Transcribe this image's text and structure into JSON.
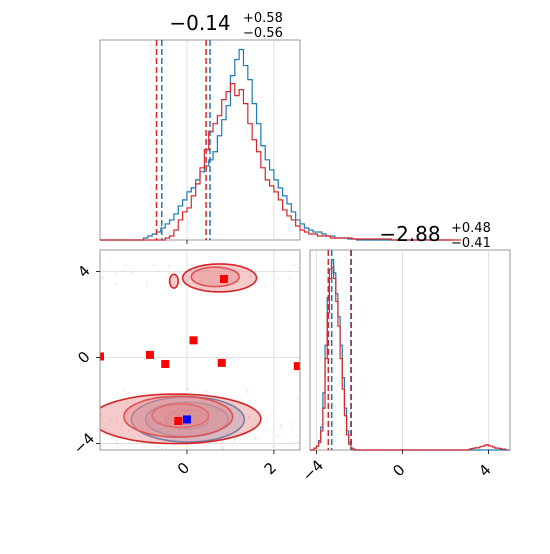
{
  "chart_data": [
    {
      "type": "histogram",
      "panel": "x-marginal",
      "title": {
        "median": "−0.14",
        "upper": "+0.58",
        "lower": "−0.56"
      },
      "xlim": [
        -2.0,
        2.6
      ],
      "bin_start": -2.0,
      "bin_width": 0.1,
      "series": [
        {
          "name": "",
          "color": "#1f77b4",
          "counts": [
            0,
            0,
            0,
            0,
            0,
            0,
            0,
            0,
            0,
            0,
            0.01,
            0.02,
            0.03,
            0.04,
            0.06,
            0.08,
            0.1,
            0.13,
            0.17,
            0.2,
            0.24,
            0.26,
            0.3,
            0.34,
            0.37,
            0.4,
            0.44,
            0.52,
            0.6,
            0.67,
            0.82,
            0.9,
            0.95,
            0.87,
            0.8,
            0.68,
            0.58,
            0.47,
            0.4,
            0.35,
            0.3,
            0.26,
            0.22,
            0.18,
            0.14,
            0.1,
            0.08,
            0.06,
            0.05,
            0.04,
            0.04,
            0.03,
            0.02,
            0.02,
            0.01,
            0.01,
            0.01,
            0.005,
            0.005,
            0,
            0,
            0,
            0,
            0,
            0,
            0,
            0,
            0,
            0,
            0,
            0,
            0,
            0,
            0,
            0,
            0,
            0,
            0,
            0,
            0,
            0
          ]
        },
        {
          "name": "",
          "color": "#d62728",
          "counts": [
            0,
            0,
            0,
            0,
            0,
            0,
            0,
            0,
            0,
            0,
            0,
            0,
            0,
            0,
            0,
            0.01,
            0.02,
            0.05,
            0.1,
            0.14,
            0.16,
            0.22,
            0.28,
            0.36,
            0.45,
            0.54,
            0.58,
            0.62,
            0.7,
            0.74,
            0.78,
            0.72,
            0.75,
            0.68,
            0.58,
            0.5,
            0.44,
            0.36,
            0.3,
            0.27,
            0.24,
            0.2,
            0.15,
            0.12,
            0.1,
            0.07,
            0.05,
            0.04,
            0.03,
            0.03,
            0.02,
            0.02,
            0.02,
            0.01,
            0.01,
            0.01,
            0.01,
            0.01,
            0.005,
            0.005,
            0.005,
            0.005,
            0.005,
            0.005,
            0.005,
            0.005,
            0.005,
            0,
            0,
            0,
            0,
            0,
            0,
            0,
            0,
            0,
            0,
            0,
            0,
            0,
            0,
            0,
            0
          ]
        }
      ],
      "quantile_lines": [
        {
          "color": "#1f77b4",
          "values": [
            -0.58,
            0.53
          ]
        },
        {
          "color": "#d62728",
          "values": [
            -0.7,
            0.44
          ]
        }
      ]
    },
    {
      "type": "contour",
      "panel": "joint",
      "xlim": [
        -2.0,
        2.6
      ],
      "ylim": [
        -4.3,
        5.0
      ],
      "yticks": [
        -4,
        0,
        4
      ],
      "ytick_labels": [
        "−4",
        "0",
        "4"
      ],
      "xticks": [
        0,
        2
      ],
      "xtick_labels": [
        "0",
        "2"
      ],
      "grid": true,
      "series": [
        {
          "name": "",
          "color": "#1f77b4",
          "fill": "#8fb4d6",
          "contours": [
            {
              "cx": 0.0,
              "cy": -2.88,
              "rx": 0.5,
              "ry": 0.45
            },
            {
              "cx": 0.0,
              "cy": -2.88,
              "rx": 0.95,
              "ry": 0.8
            },
            {
              "cx": 0.02,
              "cy": -2.88,
              "rx": 1.3,
              "ry": 1.05
            }
          ]
        },
        {
          "name": "",
          "color": "#d62728",
          "fill": "#e88a8a",
          "contours": [
            {
              "cx": -0.15,
              "cy": -2.7,
              "rx": 0.65,
              "ry": 0.55
            },
            {
              "cx": -0.2,
              "cy": -2.75,
              "rx": 1.25,
              "ry": 0.95
            },
            {
              "cx": -0.25,
              "cy": -2.85,
              "rx": 1.95,
              "ry": 1.15
            },
            {
              "cx": 0.65,
              "cy": 3.75,
              "rx": 0.55,
              "ry": 0.45
            },
            {
              "cx": 0.75,
              "cy": 3.7,
              "rx": 0.85,
              "ry": 0.65
            },
            {
              "cx": -0.3,
              "cy": 3.55,
              "rx": 0.1,
              "ry": 0.32
            }
          ]
        }
      ],
      "markers": [
        {
          "x": 0.0,
          "y": -2.88,
          "color": "#0000ff"
        },
        {
          "x": -0.2,
          "y": -2.95,
          "color": "#ff0000"
        },
        {
          "x": -0.85,
          "y": 0.12,
          "color": "#ff0000"
        },
        {
          "x": -2.0,
          "y": 0.05,
          "color": "#ff0000"
        },
        {
          "x": -0.5,
          "y": -0.3,
          "color": "#ff0000"
        },
        {
          "x": 0.15,
          "y": 0.8,
          "color": "#ff0000"
        },
        {
          "x": 0.8,
          "y": -0.25,
          "color": "#ff0000"
        },
        {
          "x": 2.55,
          "y": -0.4,
          "color": "#ff0000"
        },
        {
          "x": 0.85,
          "y": 3.65,
          "color": "#ff0000"
        }
      ]
    },
    {
      "type": "histogram",
      "panel": "y-marginal",
      "title": {
        "median": "−2.88",
        "upper": "+0.48",
        "lower": "−0.41"
      },
      "xlim": [
        -4.3,
        5.0
      ],
      "xticks": [
        -4,
        0,
        4
      ],
      "xtick_labels": [
        "−4",
        "0",
        "4"
      ],
      "bin_start": -4.3,
      "bin_width": 0.1,
      "series": [
        {
          "name": "",
          "color": "#1f77b4",
          "counts": [
            0,
            0,
            0.01,
            0.02,
            0.05,
            0.12,
            0.3,
            0.55,
            0.8,
            0.95,
            1.0,
            0.93,
            0.82,
            0.7,
            0.55,
            0.38,
            0.22,
            0.1,
            0.04,
            0.01,
            0,
            0,
            0,
            0,
            0,
            0,
            0,
            0,
            0,
            0,
            0,
            0,
            0,
            0,
            0,
            0,
            0,
            0,
            0,
            0,
            0,
            0,
            0,
            0,
            0,
            0,
            0,
            0,
            0,
            0,
            0,
            0,
            0,
            0,
            0,
            0,
            0,
            0,
            0,
            0,
            0,
            0,
            0,
            0,
            0,
            0,
            0,
            0,
            0,
            0,
            0,
            0,
            0,
            0,
            0,
            0,
            0,
            0,
            0,
            0,
            0,
            0,
            0,
            0,
            0,
            0,
            0,
            0,
            0,
            0,
            0,
            0,
            0
          ]
        },
        {
          "name": "",
          "color": "#d62728",
          "counts": [
            0,
            0,
            0.01,
            0.02,
            0.04,
            0.1,
            0.22,
            0.48,
            0.72,
            0.9,
            0.96,
            0.9,
            0.78,
            0.65,
            0.48,
            0.32,
            0.18,
            0.08,
            0.03,
            0.01,
            0.005,
            0,
            0,
            0,
            0,
            0,
            0,
            0,
            0,
            0,
            0,
            0,
            0,
            0,
            0,
            0,
            0,
            0,
            0,
            0,
            0,
            0,
            0,
            0,
            0,
            0,
            0,
            0,
            0,
            0,
            0,
            0,
            0,
            0,
            0,
            0,
            0,
            0,
            0,
            0,
            0,
            0,
            0,
            0,
            0,
            0,
            0,
            0,
            0,
            0,
            0,
            0,
            0,
            0,
            0.005,
            0.008,
            0.01,
            0.012,
            0.012,
            0.018,
            0.02,
            0.025,
            0.028,
            0.022,
            0.02,
            0.015,
            0.01,
            0.01,
            0.008,
            0.005,
            0.005,
            0
          ]
        }
      ],
      "quantile_lines": [
        {
          "color": "#1f77b4",
          "values": [
            -3.29,
            -2.4
          ]
        },
        {
          "color": "#d62728",
          "values": [
            -3.45,
            -2.38
          ]
        }
      ]
    }
  ]
}
